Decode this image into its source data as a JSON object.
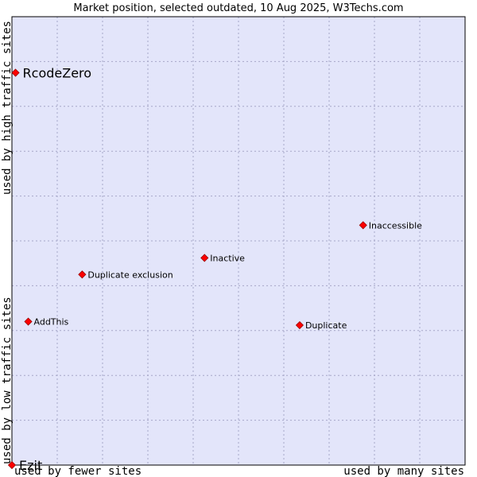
{
  "chart_data": {
    "type": "scatter",
    "title": "Market position, selected outdated, 10 Aug 2025, W3Techs.com",
    "xlabel_left": "used by fewer sites",
    "xlabel_right": "used by many sites",
    "ylabel_bottom": "used by low traffic sites",
    "ylabel_top": "used by high traffic sites",
    "xlim": [
      0,
      100
    ],
    "ylim": [
      0,
      100
    ],
    "grid": true,
    "colors": {
      "background": "#e3e5fa",
      "grid": "#a6a6c8",
      "point": "#ff0000",
      "point_edge": "#990000"
    },
    "points": [
      {
        "label": "RcodeZero",
        "x": 0.8,
        "y": 87.5,
        "emphasis": true
      },
      {
        "label": "Inaccessible",
        "x": 77.5,
        "y": 53.5,
        "emphasis": false
      },
      {
        "label": "Inactive",
        "x": 42.5,
        "y": 46.2,
        "emphasis": false
      },
      {
        "label": "Duplicate exclusion",
        "x": 15.5,
        "y": 42.5,
        "emphasis": false
      },
      {
        "label": "AddThis",
        "x": 3.6,
        "y": 32.0,
        "emphasis": false
      },
      {
        "label": "Duplicate",
        "x": 63.5,
        "y": 31.2,
        "emphasis": false
      },
      {
        "label": "Ezit",
        "x": 0.0,
        "y": 0.0,
        "emphasis": true
      }
    ]
  }
}
